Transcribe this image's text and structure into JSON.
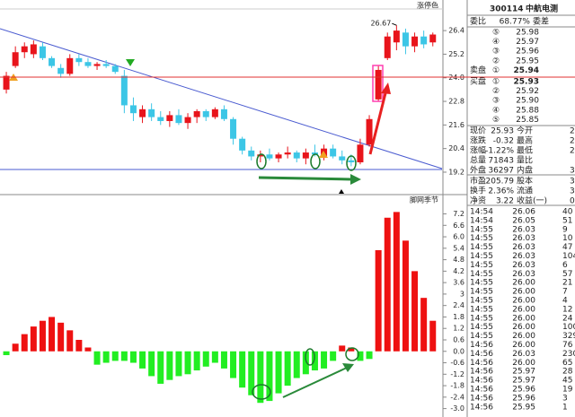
{
  "chart_data": [
    {
      "type": "candlestick",
      "title": "涨停色",
      "annotation": "26.67",
      "open": [
        23.4,
        24.6,
        25.3,
        25.2,
        25.6,
        25.0,
        24.5,
        24.2,
        25.0,
        24.8,
        24.6,
        24.7,
        24.6,
        24.1,
        22.6,
        22.0,
        22.4,
        22.0,
        21.8,
        22.1,
        21.7,
        22.0,
        22.3,
        22.0,
        22.4,
        21.9,
        20.9,
        20.3,
        20.0,
        20.1,
        19.9,
        20.1,
        20.2,
        19.9,
        20.2,
        20.0,
        20.4,
        20.0,
        19.8,
        19.7,
        20.6,
        22.9,
        25.0,
        25.8,
        26.3,
        25.6,
        26.1,
        25.8
      ],
      "high": [
        24.3,
        25.6,
        25.8,
        25.9,
        25.8,
        25.1,
        24.7,
        25.2,
        25.2,
        25.0,
        24.8,
        24.9,
        24.7,
        24.4,
        23.0,
        22.6,
        22.7,
        22.3,
        22.3,
        22.4,
        22.2,
        22.4,
        22.4,
        22.5,
        22.6,
        22.0,
        21.0,
        20.5,
        20.3,
        20.4,
        20.2,
        20.5,
        20.3,
        20.4,
        20.6,
        20.6,
        20.6,
        20.3,
        20.1,
        20.9,
        22.1,
        24.6,
        26.3,
        26.67,
        26.5,
        26.3,
        26.4,
        26.3
      ],
      "low": [
        23.2,
        24.5,
        25.0,
        25.0,
        24.9,
        24.5,
        24.0,
        24.1,
        24.6,
        24.5,
        24.4,
        24.5,
        24.2,
        22.2,
        21.8,
        21.7,
        21.8,
        21.6,
        21.5,
        21.6,
        21.4,
        21.7,
        21.8,
        21.9,
        21.8,
        20.6,
        20.1,
        19.8,
        19.7,
        19.8,
        19.7,
        19.9,
        19.7,
        19.6,
        20.0,
        19.8,
        19.9,
        19.6,
        19.5,
        19.6,
        20.5,
        22.8,
        24.9,
        25.4,
        25.2,
        25.3,
        25.5,
        25.6
      ],
      "close": [
        24.1,
        25.3,
        25.6,
        25.7,
        25.0,
        24.6,
        24.2,
        25.0,
        24.8,
        24.6,
        24.7,
        24.6,
        24.3,
        22.6,
        22.2,
        22.4,
        22.0,
        21.8,
        22.1,
        21.7,
        22.0,
        22.3,
        22.0,
        22.4,
        21.9,
        20.9,
        20.3,
        20.0,
        20.1,
        19.9,
        20.1,
        20.2,
        19.9,
        20.2,
        20.1,
        20.4,
        20.0,
        19.8,
        19.7,
        20.6,
        21.9,
        24.4,
        26.1,
        26.4,
        25.6,
        26.1,
        25.7,
        26.2
      ],
      "up_color": "#e8141b",
      "down_color": "#3cc6e6",
      "ylim": [
        18.15,
        27.5
      ],
      "yticks": [
        19.2,
        20.4,
        21.6,
        22.8,
        {
          "value": 24,
          "label": "24.0"
        },
        25.2,
        26.4
      ]
    },
    {
      "type": "bar",
      "title": "脚网季节",
      "values": [
        -0.2,
        0.4,
        0.9,
        1.3,
        1.6,
        1.8,
        1.5,
        1.1,
        0.6,
        0.2,
        -0.7,
        -0.6,
        -0.5,
        -0.5,
        -0.6,
        -0.9,
        -1.3,
        -1.7,
        -1.5,
        -1.3,
        -1.2,
        -1.0,
        -0.8,
        -0.6,
        -0.9,
        -1.4,
        -1.9,
        -2.3,
        -2.7,
        -2.6,
        -2.2,
        -1.8,
        -1.4,
        -1.2,
        -1.0,
        -0.9,
        -0.5,
        0.3,
        0.2,
        -0.5,
        -0.4,
        5.3,
        7.0,
        7.3,
        5.8,
        4.2,
        2.8,
        1.6
      ],
      "positive_color": "#ee1111",
      "negative_color": "#22ee22",
      "ylim": [
        -3.3,
        7.6
      ],
      "yticks": [
        7.2,
        6.6,
        {
          "value": 6,
          "label": "6.0"
        },
        5.4,
        4.8,
        4.2,
        3.6,
        3.0,
        2.4,
        1.8,
        1.2,
        0.6,
        {
          "value": 0,
          "label": "0.0"
        },
        -0.6,
        -1.2,
        -1.8,
        -2.4,
        {
          "value": -3,
          "label": "-3.0"
        }
      ]
    }
  ],
  "quote_panel": {
    "code": "300114",
    "name": "中航电测",
    "ratio_label": "委比",
    "ratio": "68.77%",
    "diff_label": "委差",
    "sell_label": "卖盘",
    "buy_label": "买盘",
    "sell": [
      [
        "⑤",
        "25.98"
      ],
      [
        "④",
        "25.97"
      ],
      [
        "③",
        "25.96"
      ],
      [
        "②",
        "25.95"
      ],
      [
        "①",
        "25.94"
      ]
    ],
    "buy": [
      [
        "①",
        "25.93"
      ],
      [
        "②",
        "25.92"
      ],
      [
        "③",
        "25.90"
      ],
      [
        "④",
        "25.88"
      ],
      [
        "⑤",
        "25.85"
      ]
    ],
    "stats": [
      [
        "现价",
        "25.93",
        "今开",
        "2"
      ],
      [
        "涨跌",
        "-0.32",
        "最高",
        "2"
      ],
      [
        "涨幅",
        "-1.22%",
        "最低",
        "2"
      ],
      [
        "总量",
        "71843",
        "量比",
        ""
      ],
      [
        "外盘",
        "36297",
        "内盘",
        "3"
      ],
      [
        "市盈",
        "205.79",
        "股本",
        "3."
      ],
      [
        "换手",
        "2.36%",
        "流通",
        "3"
      ],
      [
        "净资",
        "3.22",
        "收益(一)",
        "0."
      ]
    ],
    "ticks": [
      [
        "14:54",
        "26.06",
        "40"
      ],
      [
        "14:54",
        "26.05",
        "51"
      ],
      [
        "14:55",
        "26.03",
        "9"
      ],
      [
        "14:55",
        "26.03",
        "10"
      ],
      [
        "14:55",
        "26.03",
        "47"
      ],
      [
        "14:55",
        "26.03",
        "104"
      ],
      [
        "14:55",
        "26.03",
        "6"
      ],
      [
        "14:55",
        "26.03",
        "57"
      ],
      [
        "14:55",
        "26.00",
        "21"
      ],
      [
        "14:55",
        "26.00",
        "7"
      ],
      [
        "14:55",
        "26.00",
        "4"
      ],
      [
        "14:55",
        "26.00",
        "12"
      ],
      [
        "14:55",
        "26.00",
        "24"
      ],
      [
        "14:55",
        "26.00",
        "100"
      ],
      [
        "14:55",
        "26.00",
        "329"
      ],
      [
        "14:56",
        "26.00",
        "76"
      ],
      [
        "14:56",
        "26.03",
        "230"
      ],
      [
        "14:56",
        "26.00",
        "65"
      ],
      [
        "14:56",
        "25.97",
        "28"
      ],
      [
        "14:56",
        "25.97",
        "45"
      ],
      [
        "14:56",
        "25.96",
        "19"
      ],
      [
        "14:56",
        "25.96",
        "3"
      ],
      [
        "14:56",
        "25.95",
        "1"
      ]
    ]
  }
}
